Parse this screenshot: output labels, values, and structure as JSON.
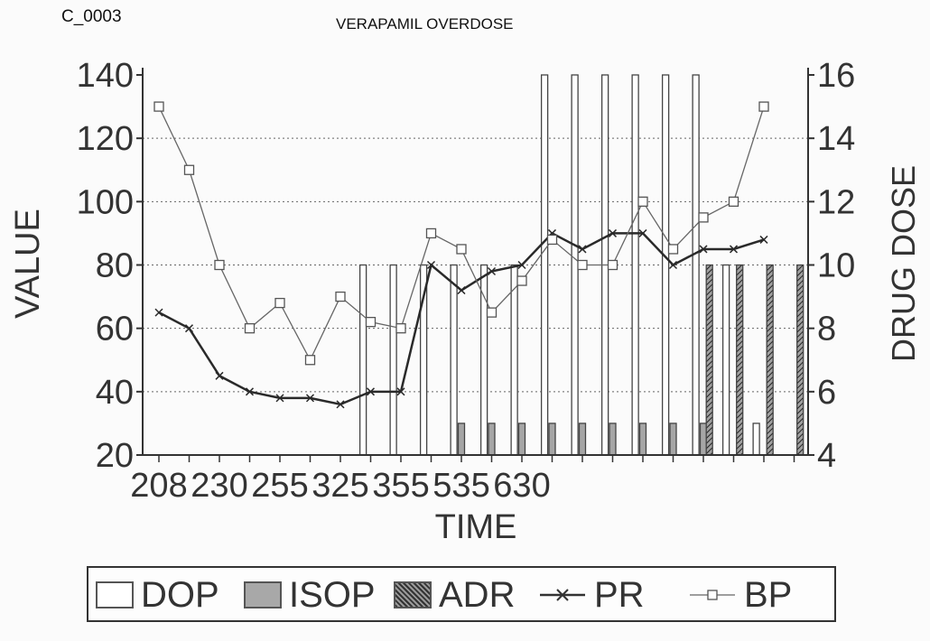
{
  "doc_id": "C_0003",
  "title": "VERAPAMIL OVERDOSE",
  "chart_data": {
    "type": "bar+line",
    "title": "VERAPAMIL OVERDOSE",
    "xlabel": "TIME",
    "ylabel_left": "VALUE",
    "ylabel_right": "DRUG DOSE",
    "ylim_left": [
      20,
      140
    ],
    "ylim_right": [
      4,
      16
    ],
    "yticks_left": [
      "20",
      "40",
      "60",
      "80",
      "100",
      "120",
      "140"
    ],
    "yticks_right": [
      "4",
      "6",
      "8",
      "10",
      "12",
      "14",
      "16"
    ],
    "grid": "horizontal dotted",
    "x_count": 22,
    "x_tick_labels": [
      {
        "index": 0,
        "label": "208"
      },
      {
        "index": 2,
        "label": "230"
      },
      {
        "index": 4,
        "label": "255"
      },
      {
        "index": 6,
        "label": "325"
      },
      {
        "index": 8,
        "label": "355"
      },
      {
        "index": 10,
        "label": "535"
      },
      {
        "index": 12,
        "label": "630"
      }
    ],
    "series": [
      {
        "name": "DOP",
        "kind": "bar",
        "axis": "right",
        "style": "open",
        "x": [
          6.75,
          7.75,
          8.75,
          9.75,
          10.75,
          11.75,
          12.75,
          13.75,
          14.75,
          15.75,
          16.75,
          17.75,
          18.75,
          19.75
        ],
        "values": [
          10,
          10,
          10,
          10,
          10,
          10,
          16,
          16,
          16,
          16,
          16,
          16,
          10,
          5
        ]
      },
      {
        "name": "ISOP",
        "kind": "bar",
        "axis": "right",
        "style": "grey",
        "x": [
          10,
          11,
          12,
          13,
          14,
          15,
          16,
          17,
          18
        ],
        "values": [
          5,
          5,
          5,
          5,
          5,
          5,
          5,
          5,
          5
        ]
      },
      {
        "name": "ADR",
        "kind": "bar",
        "axis": "right",
        "style": "hatched",
        "x": [
          18.2,
          19.2,
          20.2,
          21.2
        ],
        "values": [
          10,
          10,
          10,
          10
        ]
      },
      {
        "name": "PR",
        "kind": "line",
        "axis": "left",
        "marker": "x",
        "x": [
          0,
          1,
          2,
          3,
          4,
          5,
          6,
          7,
          8,
          9,
          10,
          11,
          12,
          13,
          14,
          15,
          16,
          17,
          18,
          19,
          20
        ],
        "values": [
          65,
          60,
          45,
          40,
          38,
          38,
          36,
          40,
          40,
          80,
          72,
          78,
          80,
          90,
          85,
          90,
          90,
          80,
          85,
          85,
          88
        ]
      },
      {
        "name": "BP",
        "kind": "line",
        "axis": "left",
        "marker": "square",
        "x": [
          0,
          1,
          2,
          3,
          4,
          5,
          6,
          7,
          8,
          9,
          10,
          11,
          12,
          13,
          14,
          15,
          16,
          17,
          18,
          19,
          20
        ],
        "values": [
          130,
          110,
          80,
          60,
          68,
          50,
          70,
          62,
          60,
          90,
          85,
          65,
          75,
          88,
          80,
          80,
          100,
          85,
          95,
          100,
          130
        ]
      }
    ],
    "legend": {
      "placement": "bottom",
      "entries": [
        "DOP",
        "ISOP",
        "ADR",
        "PR",
        "BP"
      ]
    }
  }
}
